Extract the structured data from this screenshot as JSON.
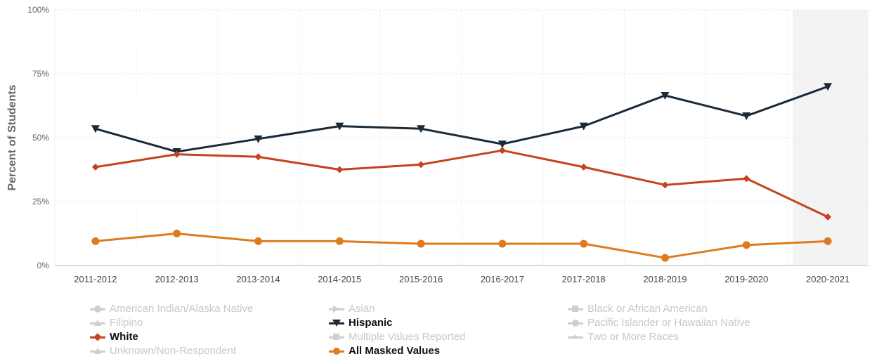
{
  "chart_data": {
    "type": "line",
    "ylabel": "Percent of Students",
    "xlabel": "",
    "ylim": [
      0,
      100
    ],
    "yticks": [
      "0%",
      "25%",
      "50%",
      "75%",
      "100%"
    ],
    "categories": [
      "2011-2012",
      "2012-2013",
      "2013-2014",
      "2014-2015",
      "2015-2016",
      "2016-2017",
      "2017-2018",
      "2018-2019",
      "2019-2020",
      "2020-2021"
    ],
    "grid": true,
    "legend_position": "bottom",
    "series": [
      {
        "name": "Hispanic",
        "color": "#1b2a38",
        "marker": "triangle-down",
        "values": [
          53.5,
          44.5,
          49.5,
          54.5,
          53.5,
          47.5,
          54.5,
          66.5,
          58.5,
          70
        ]
      },
      {
        "name": "White",
        "color": "#c5431d",
        "marker": "diamond",
        "values": [
          38.5,
          43.5,
          42.5,
          37.5,
          39.5,
          45,
          38.5,
          31.5,
          34,
          19
        ]
      },
      {
        "name": "All Masked Values",
        "color": "#e07a1f",
        "marker": "circle",
        "values": [
          9.5,
          12.5,
          9.5,
          9.5,
          8.5,
          8.5,
          8.5,
          3,
          8,
          9.5
        ]
      }
    ]
  },
  "legend": [
    {
      "label": "American Indian/Alaska Native",
      "state": "dim",
      "symbol": "circle"
    },
    {
      "label": "Asian",
      "state": "dim",
      "symbol": "arrow"
    },
    {
      "label": "Black or African American",
      "state": "dim",
      "symbol": "square"
    },
    {
      "label": "Filipino",
      "state": "dim",
      "symbol": "triangle"
    },
    {
      "label": "Hispanic",
      "state": "active",
      "symbol": "triangle-down",
      "color": "#1b2a38"
    },
    {
      "label": "Pacific Islander or Hawaiian Native",
      "state": "dim",
      "symbol": "circle"
    },
    {
      "label": "White",
      "state": "active",
      "symbol": "diamond",
      "color": "#c5431d"
    },
    {
      "label": "Multiple Values Reported",
      "state": "dim",
      "symbol": "square"
    },
    {
      "label": "Two or More Races",
      "state": "dim",
      "symbol": "star"
    },
    {
      "label": "Unknown/Non-Respondent",
      "state": "dim",
      "symbol": "triangle"
    },
    {
      "label": "All Masked Values",
      "state": "active",
      "symbol": "circle",
      "color": "#e07a1f"
    }
  ]
}
